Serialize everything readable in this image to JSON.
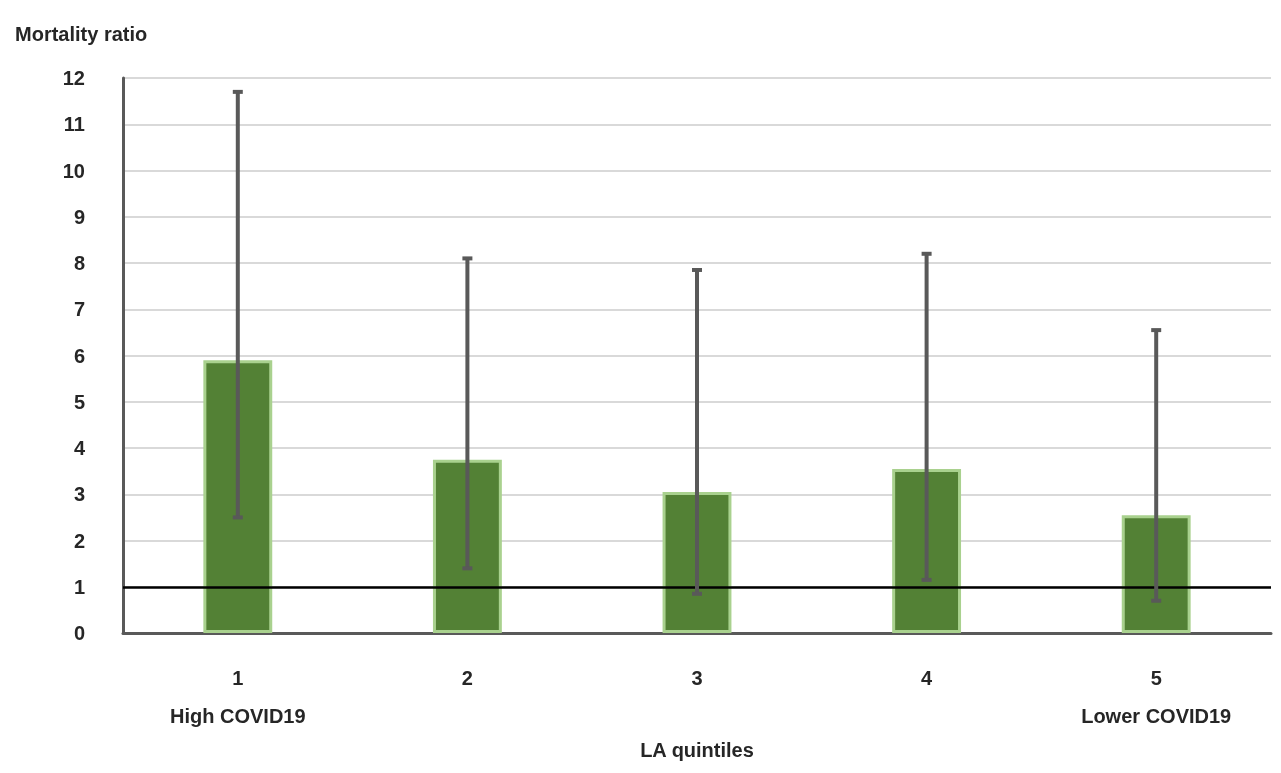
{
  "chart_data": {
    "type": "bar",
    "ylabel": "Mortality ratio",
    "xlabel": "LA quintiles",
    "categories": [
      "1\nHigh COVID19",
      "2",
      "3",
      "4",
      "5\nLower COVID19"
    ],
    "values": [
      5.9,
      3.75,
      3.05,
      3.55,
      2.55
    ],
    "errors": [
      [
        2.5,
        11.7
      ],
      [
        1.4,
        8.1
      ],
      [
        0.85,
        7.85
      ],
      [
        1.15,
        8.2
      ],
      [
        0.7,
        6.55
      ]
    ],
    "color": "#538135",
    "ylim": [
      0,
      12
    ],
    "yticks": [
      0,
      1,
      2,
      3,
      4,
      5,
      6,
      7,
      8,
      9,
      10,
      11,
      12
    ],
    "grid": "y",
    "ref_lines": [
      {
        "axis": "y",
        "value": 1,
        "color": "#000000"
      }
    ]
  }
}
